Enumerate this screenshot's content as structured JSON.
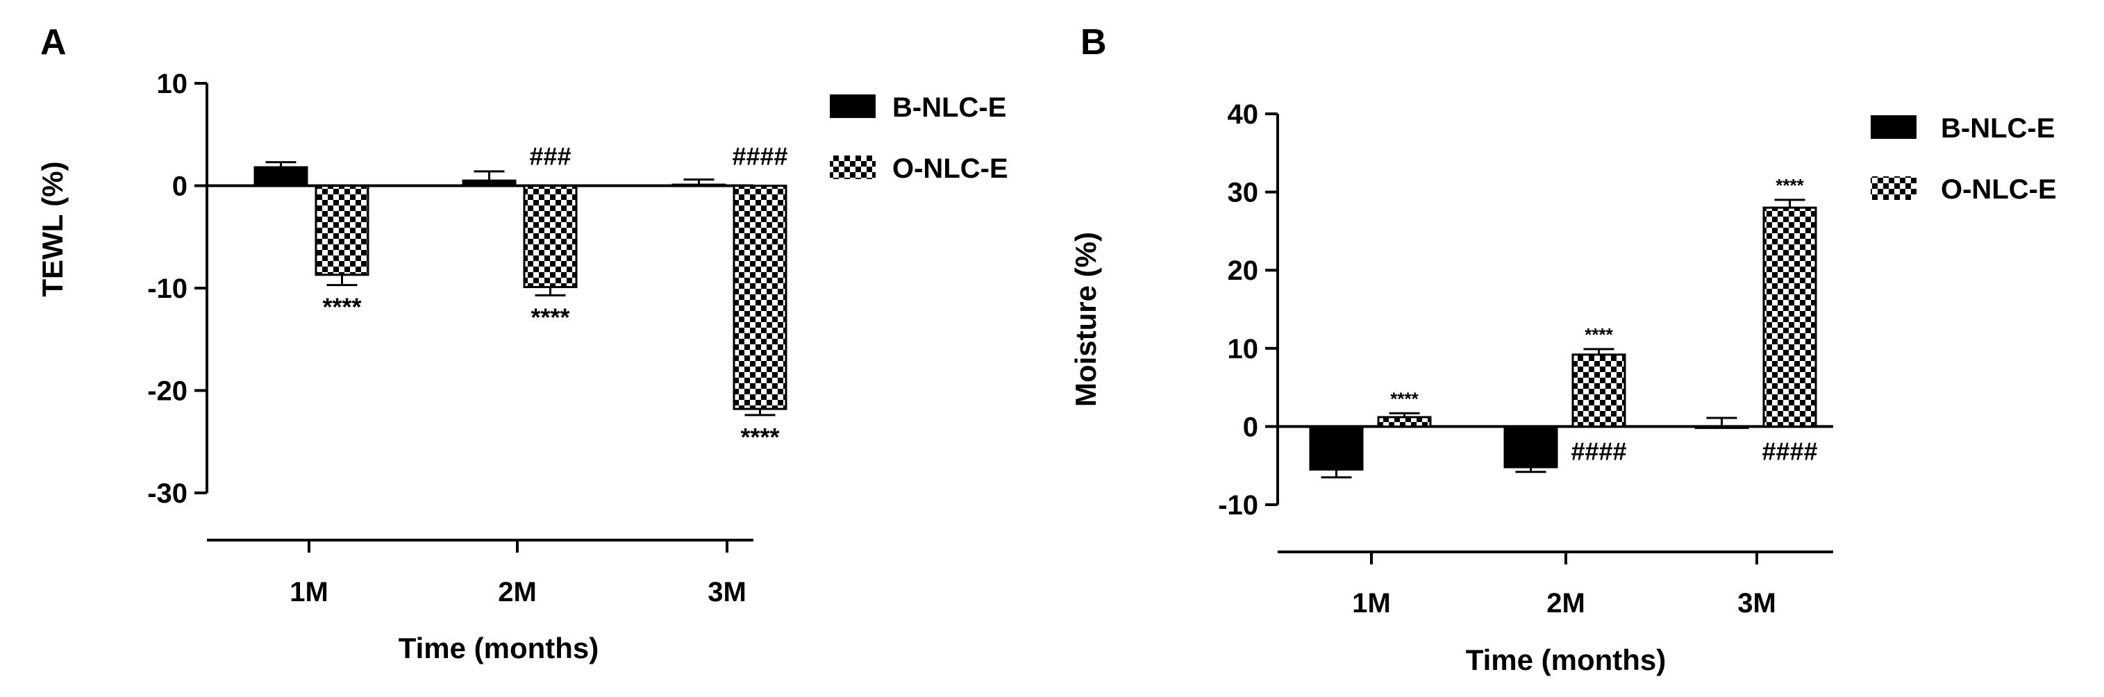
{
  "colors": {
    "solid": "#000000",
    "check_light": "#ffffff",
    "check_dark": "#000000",
    "axis": "#000000"
  },
  "chart_data": [
    {
      "panel": "A",
      "type": "bar",
      "title": "",
      "xlabel": "Time (months)",
      "ylabel": "TEWL (%)",
      "categories": [
        "1M",
        "2M",
        "3M"
      ],
      "ylim": [
        -30,
        10
      ],
      "yticks": [
        -30,
        -20,
        -10,
        0,
        10
      ],
      "grid": false,
      "legend_position": "top-right",
      "series": [
        {
          "name": "B-NLC-E",
          "fill": "solid",
          "values": [
            1.8,
            0.5,
            0.1
          ],
          "errors": [
            0.5,
            0.9,
            0.5
          ]
        },
        {
          "name": "O-NLC-E",
          "fill": "checker",
          "values": [
            -8.7,
            -9.9,
            -21.8
          ],
          "errors": [
            1.0,
            0.8,
            0.6
          ]
        }
      ],
      "annotations": [
        {
          "text": "****",
          "category": 0,
          "series": 1,
          "position": "below"
        },
        {
          "text": "****",
          "category": 1,
          "series": 1,
          "position": "below"
        },
        {
          "text": "****",
          "category": 2,
          "series": 1,
          "position": "below"
        },
        {
          "text": "###",
          "category": 1,
          "series": 1,
          "position": "above-zero"
        },
        {
          "text": "####",
          "category": 2,
          "series": 1,
          "position": "above-zero"
        }
      ]
    },
    {
      "panel": "B",
      "type": "bar",
      "title": "",
      "xlabel": "Time (months)",
      "ylabel": "Moisture (%)",
      "categories": [
        "1M",
        "2M",
        "3M"
      ],
      "ylim": [
        -10,
        40
      ],
      "yticks": [
        -10,
        0,
        10,
        20,
        30,
        40
      ],
      "grid": false,
      "legend_position": "top-right",
      "series": [
        {
          "name": "B-NLC-E",
          "fill": "solid",
          "values": [
            -5.5,
            -5.2,
            0.0
          ],
          "errors": [
            1.0,
            0.6,
            1.1
          ]
        },
        {
          "name": "O-NLC-E",
          "fill": "checker",
          "values": [
            1.2,
            9.2,
            28.0
          ],
          "errors": [
            0.5,
            0.7,
            1.0
          ]
        }
      ],
      "annotations": [
        {
          "text": "****",
          "category": 0,
          "series": 1,
          "position": "above"
        },
        {
          "text": "****",
          "category": 1,
          "series": 1,
          "position": "above"
        },
        {
          "text": "****",
          "category": 2,
          "series": 1,
          "position": "above"
        },
        {
          "text": "####",
          "category": 1,
          "series": 1,
          "position": "below-zero"
        },
        {
          "text": "####",
          "category": 2,
          "series": 1,
          "position": "below-zero"
        }
      ]
    }
  ]
}
